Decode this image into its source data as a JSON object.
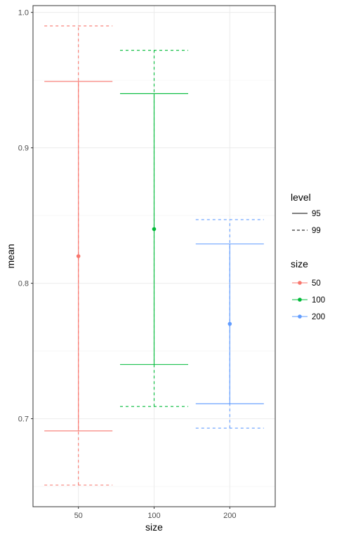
{
  "chart_data": {
    "type": "errorbar",
    "xlabel": "size",
    "ylabel": "mean",
    "categories": [
      "50",
      "100",
      "200"
    ],
    "ylim": [
      0.635,
      1.005
    ],
    "yticks": [
      0.7,
      0.8,
      0.9,
      1.0
    ],
    "ytick_labels": [
      "0.7",
      "0.8",
      "0.9",
      "1.0"
    ],
    "grid": true,
    "points": [
      {
        "size": "50",
        "mean": 0.82,
        "ci95": [
          0.691,
          0.949
        ],
        "ci99": [
          0.651,
          0.99
        ],
        "color": "#F8766D"
      },
      {
        "size": "100",
        "mean": 0.84,
        "ci95": [
          0.74,
          0.94
        ],
        "ci99": [
          0.709,
          0.972
        ],
        "color": "#00BA38"
      },
      {
        "size": "200",
        "mean": 0.77,
        "ci95": [
          0.711,
          0.829
        ],
        "ci99": [
          0.693,
          0.847
        ],
        "color": "#619CFF"
      }
    ],
    "legend": {
      "placement": "right",
      "level": {
        "title": "level",
        "items": [
          {
            "label": "95",
            "linetype": "solid"
          },
          {
            "label": "99",
            "linetype": "dashed"
          }
        ]
      },
      "size": {
        "title": "size",
        "items": [
          {
            "label": "50",
            "color": "#F8766D"
          },
          {
            "label": "100",
            "color": "#00BA38"
          },
          {
            "label": "200",
            "color": "#619CFF"
          }
        ]
      }
    }
  }
}
